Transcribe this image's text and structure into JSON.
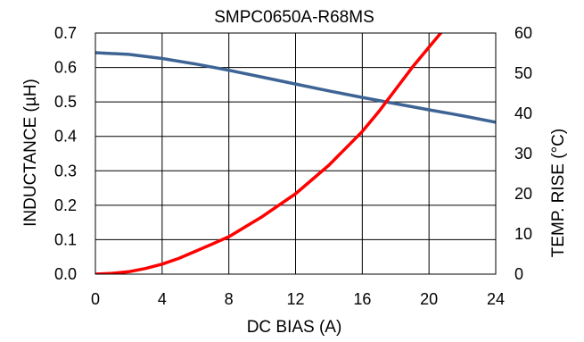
{
  "chart_data": {
    "type": "line",
    "title": "SMPC0650A-R68MS",
    "xlabel": "DC BIAS (A)",
    "ylabel": "INDUCTANCE (µH)",
    "y2label": "TEMP. RISE (°C)",
    "xlim": [
      0,
      24
    ],
    "ylim": [
      0,
      0.7
    ],
    "y2lim": [
      0,
      60
    ],
    "xticks": [
      "0",
      "4",
      "8",
      "12",
      "16",
      "20",
      "24"
    ],
    "yticks": [
      "0.0",
      "0.1",
      "0.2",
      "0.3",
      "0.4",
      "0.5",
      "0.6",
      "0.7"
    ],
    "y2ticks": [
      "0",
      "10",
      "20",
      "30",
      "40",
      "50",
      "60"
    ],
    "grid": true,
    "series": [
      {
        "axis": "left",
        "color": "#3d6494",
        "points": [
          [
            0,
            0.643
          ],
          [
            2,
            0.638
          ],
          [
            4,
            0.626
          ],
          [
            6,
            0.61
          ],
          [
            8,
            0.592
          ],
          [
            10,
            0.572
          ],
          [
            12,
            0.552
          ],
          [
            14,
            0.532
          ],
          [
            16,
            0.513
          ],
          [
            18,
            0.495
          ],
          [
            20,
            0.477
          ],
          [
            22,
            0.46
          ],
          [
            24,
            0.441
          ]
        ]
      },
      {
        "axis": "right",
        "color": "#ff0000",
        "points": [
          [
            0,
            0
          ],
          [
            1,
            0.2
          ],
          [
            2,
            0.6
          ],
          [
            3,
            1.4
          ],
          [
            4,
            2.5
          ],
          [
            5,
            3.9
          ],
          [
            6,
            5.7
          ],
          [
            7,
            7.5
          ],
          [
            8,
            9.3
          ],
          [
            10,
            14.3
          ],
          [
            12,
            20.0
          ],
          [
            14,
            27.1
          ],
          [
            16,
            35.5
          ],
          [
            17,
            40.5
          ],
          [
            18,
            46.0
          ],
          [
            19,
            51.5
          ],
          [
            20,
            56.5
          ],
          [
            21,
            61.5
          ]
        ]
      }
    ]
  }
}
